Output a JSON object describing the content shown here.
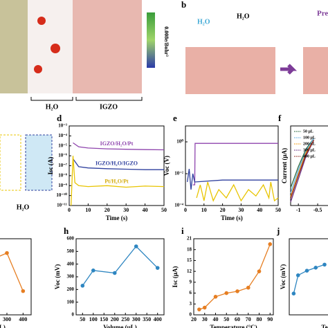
{
  "panel_a": {
    "colorbar_label": "0.008e/Bohr³",
    "labels": [
      "H₂O",
      "IGZO"
    ]
  },
  "panel_b": {
    "letter": "b",
    "labels": [
      "H₂O",
      "H₂O",
      "Pre"
    ]
  },
  "panel_c": {
    "labels": [
      "H₂O"
    ]
  },
  "chart_data": [
    {
      "type": "line",
      "letter": "d",
      "xlabel": "Time (s)",
      "ylabel": "Isc (A)",
      "log_y": true,
      "xlim": [
        0,
        50
      ],
      "xticks": [
        0,
        10,
        20,
        30,
        40,
        50
      ],
      "ylim": [
        1e-11,
        0.001
      ],
      "yticks": [
        {
          "value": 0.001,
          "label": "10⁻³"
        },
        {
          "value": 0.0001,
          "label": "10⁻⁴"
        },
        {
          "value": 1e-05,
          "label": "10⁻⁵"
        },
        {
          "value": 1e-06,
          "label": "10⁻⁶"
        },
        {
          "value": 1e-07,
          "label": "10⁻⁷"
        },
        {
          "value": 1e-08,
          "label": "10⁻⁸"
        },
        {
          "value": 1e-09,
          "label": "10⁻⁹"
        },
        {
          "value": 1e-10,
          "label": "10⁻¹⁰"
        },
        {
          "value": 1e-11,
          "label": "10⁻¹¹"
        }
      ],
      "series_labels": true,
      "series": [
        {
          "name": "IGZO/H₂O/Pt",
          "color": "#8e44ad",
          "x": [
            2,
            5,
            10,
            20,
            30,
            40,
            50
          ],
          "values": [
            2e-05,
            8e-06,
            6e-06,
            5e-06,
            4.5e-06,
            4.2e-06,
            4e-06
          ]
        },
        {
          "name": "IGZO/H₂O/IGZO",
          "color": "#2e3f9e",
          "x": [
            2,
            5,
            10,
            20,
            30,
            40,
            50
          ],
          "values": [
            5e-07,
            8e-08,
            6e-08,
            5e-08,
            4.5e-08,
            4e-08,
            4e-08
          ]
        },
        {
          "name": "Pt/H₂O/Pt",
          "color": "#e8c400",
          "x": [
            1,
            2,
            3,
            5,
            10,
            20,
            30,
            40,
            50
          ],
          "values": [
            1e-11,
            1e-06,
            2e-09,
            1e-09,
            8e-10,
            1e-09,
            7e-10,
            9e-10,
            8e-10
          ]
        }
      ]
    },
    {
      "type": "line",
      "letter": "e",
      "xlabel": "Time (s)",
      "ylabel": "Voc (V)",
      "log_y": true,
      "xlim": [
        0,
        50
      ],
      "xticks": [
        0,
        10,
        20,
        30,
        40,
        50
      ],
      "ylim": [
        0.0001,
        10
      ],
      "yticks": [
        {
          "value": 1,
          "label": "10⁰"
        },
        {
          "value": 0.01,
          "label": "10⁻²"
        },
        {
          "value": 0.0001,
          "label": "10⁻⁴"
        }
      ],
      "series": [
        {
          "color": "#8e44ad",
          "x": [
            4,
            5,
            5.2,
            20,
            35,
            50
          ],
          "values": [
            0.002,
            0.002,
            0.8,
            0.8,
            0.8,
            0.8
          ]
        },
        {
          "color": "#2e3f9e",
          "x": [
            1,
            2,
            3,
            4,
            5,
            20,
            35,
            50
          ],
          "values": [
            0.003,
            0.02,
            0.001,
            0.01,
            0.003,
            0.004,
            0.004,
            0.004
          ]
        },
        {
          "color": "#e8c400",
          "x": [
            6,
            8,
            10,
            12,
            15,
            18,
            22,
            26,
            30,
            34,
            38,
            42,
            45,
            46,
            48,
            50
          ],
          "values": [
            0.0003,
            0.002,
            0.0002,
            0.003,
            0.0002,
            0.001,
            0.0003,
            0.002,
            0.0002,
            0.001,
            0.0004,
            0.002,
            0.0003,
            0.003,
            0.0002,
            0.0003
          ]
        }
      ]
    },
    {
      "type": "line",
      "letter": "f",
      "xlabel": "",
      "ylabel": "Current (μA)",
      "legend": true,
      "xlim": [
        -1.2,
        0
      ],
      "xticks": [
        -1.0,
        -0.5
      ],
      "ylim": [
        -40,
        5
      ],
      "series": [
        {
          "name": "50 μL",
          "color": "#2d6a3e",
          "x": [
            -1.2,
            -1.0,
            -0.8,
            -0.6
          ],
          "values": [
            -30,
            -18,
            -8,
            -2
          ]
        },
        {
          "name": "100 μL",
          "color": "#5dade2",
          "x": [
            -1.2,
            -1.0,
            -0.8,
            -0.6
          ],
          "values": [
            -33,
            -20,
            -9,
            -2
          ]
        },
        {
          "name": "200 μL",
          "color": "#f39c12",
          "x": [
            -1.2,
            -1.0,
            -0.8,
            -0.6
          ],
          "values": [
            -35,
            -22,
            -10,
            -3
          ]
        },
        {
          "name": "300 μL",
          "color": "#6c3483",
          "x": [
            -1.2,
            -1.0,
            -0.8,
            -0.6
          ],
          "values": [
            -38,
            -25,
            -12,
            -3
          ]
        },
        {
          "name": "400 μL",
          "color": "#922b21",
          "x": [
            -1.2,
            -1.0,
            -0.8,
            -0.6
          ],
          "values": [
            -36,
            -23,
            -11,
            -3
          ]
        }
      ]
    },
    {
      "type": "line",
      "letter": "",
      "xlabel": "me (μL)",
      "ylabel": "",
      "markers": true,
      "xlim": [
        0,
        450
      ],
      "xticks": [
        300,
        400
      ],
      "ylim": [
        200,
        520
      ],
      "series": [
        {
          "color": "#e67e22",
          "x": [
            200,
            300,
            400
          ],
          "values": [
            430,
            460,
            300
          ]
        }
      ]
    },
    {
      "type": "line",
      "letter": "h",
      "xlabel": "Volume (μL)",
      "ylabel": "Voc (mV)",
      "markers": true,
      "xlim": [
        20,
        430
      ],
      "xticks": [
        50,
        100,
        150,
        200,
        250,
        300,
        350,
        400
      ],
      "ylim": [
        0,
        600
      ],
      "yticks": [
        0,
        100,
        200,
        300,
        400,
        500,
        600
      ],
      "series": [
        {
          "color": "#2e86c1",
          "x": [
            50,
            100,
            200,
            300,
            400
          ],
          "values": [
            230,
            350,
            330,
            540,
            370
          ]
        }
      ]
    },
    {
      "type": "line",
      "letter": "i",
      "xlabel": "Temperature (°C)",
      "ylabel": "Isc (μA)",
      "markers": true,
      "xlim": [
        20,
        93
      ],
      "xticks": [
        20,
        30,
        40,
        50,
        60,
        70,
        80,
        90
      ],
      "ylim": [
        0,
        21
      ],
      "yticks": [
        0,
        3,
        6,
        9,
        12,
        15,
        18,
        21
      ],
      "series": [
        {
          "color": "#e67e22",
          "x": [
            25,
            30,
            40,
            50,
            60,
            70,
            80,
            90
          ],
          "values": [
            1.5,
            2,
            5,
            6,
            6.5,
            7.5,
            12,
            19.5
          ]
        }
      ]
    },
    {
      "type": "line",
      "letter": "j",
      "xlabel": "Te",
      "ylabel": "Voc (mV)",
      "markers": true,
      "xlim": [
        20,
        100
      ],
      "ylim": [
        400,
        650
      ],
      "series": [
        {
          "color": "#2e86c1",
          "x": [
            25,
            30,
            40,
            50,
            60
          ],
          "values": [
            470,
            530,
            545,
            555,
            565
          ]
        }
      ]
    }
  ]
}
